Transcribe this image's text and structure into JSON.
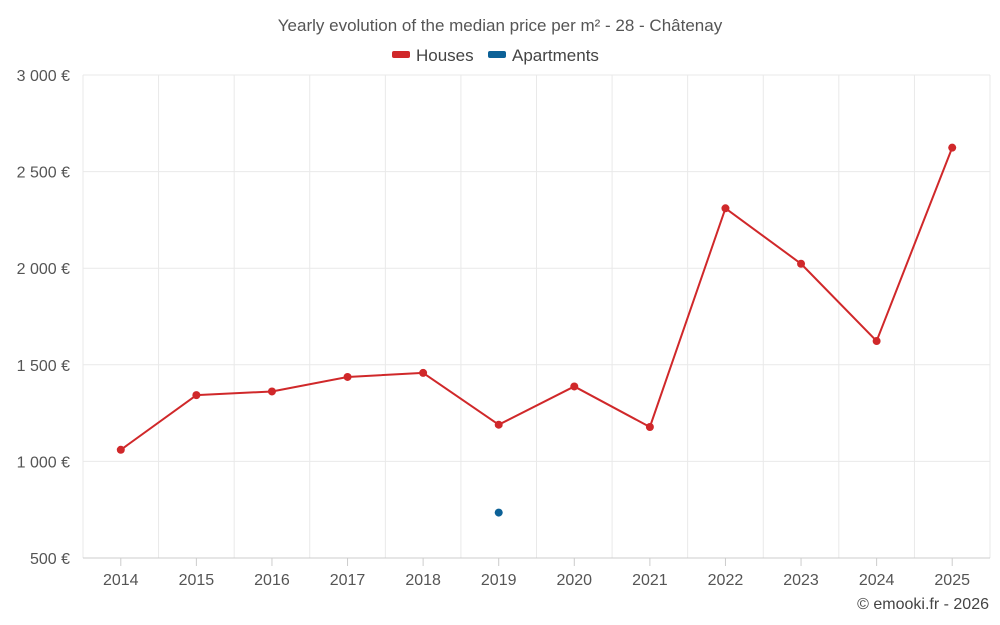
{
  "chart_data": {
    "type": "line",
    "title": "Yearly evolution of the median price per m² - 28 - Châtenay",
    "categories": [
      "2014",
      "2015",
      "2016",
      "2017",
      "2018",
      "2019",
      "2020",
      "2021",
      "2022",
      "2023",
      "2024",
      "2025"
    ],
    "series": [
      {
        "name": "Houses",
        "color": "#d0282a",
        "values": [
          1060,
          1343,
          1362,
          1437,
          1458,
          1190,
          1388,
          1178,
          2310,
          2023,
          1623,
          2624
        ]
      },
      {
        "name": "Apartments",
        "color": "#0c6197",
        "values": [
          null,
          null,
          null,
          null,
          null,
          735,
          null,
          null,
          null,
          null,
          null,
          null
        ]
      }
    ],
    "ylim": [
      500,
      3000
    ],
    "yticks": [
      500,
      1000,
      1500,
      2000,
      2500,
      3000
    ],
    "ytick_labels": [
      "500 €",
      "1 000 €",
      "1 500 €",
      "2 000 €",
      "2 500 €",
      "3 000 €"
    ],
    "xlabel": "",
    "ylabel": "",
    "grid": true,
    "legend_position": "top-center"
  },
  "credit": "© emooki.fr - 2026"
}
